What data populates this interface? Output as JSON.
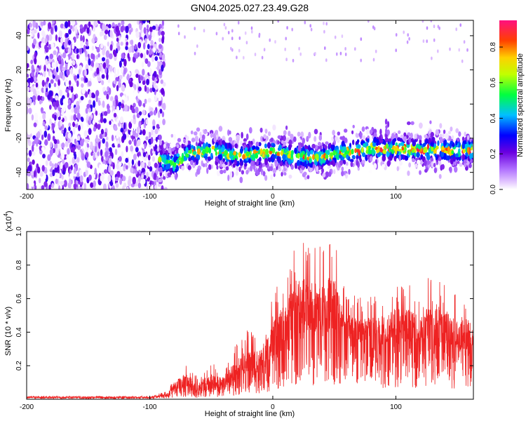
{
  "title": "GN04.2025.027.23.49.G28",
  "colors": {
    "snr_line": "#ee2222",
    "frame": "#000000"
  },
  "chart_data": [
    {
      "type": "heatmap",
      "name": "spectrogram",
      "xlabel": "Height of straight line (km)",
      "ylabel": "Frequency (Hz)",
      "xlim": [
        -200,
        163
      ],
      "ylim": [
        -50,
        49
      ],
      "x_ticks": [
        "-200",
        "-100",
        "0",
        "100"
      ],
      "y_ticks": [
        "-40",
        "-20",
        "0",
        "20",
        "40"
      ],
      "colorbar": {
        "label": "Normalized spectral amplitude",
        "range": [
          0,
          0.95
        ],
        "ticks": [
          "0.0",
          "0.2",
          "0.4",
          "0.6",
          "0.8"
        ],
        "colormap": "white-purple-blue-cyan-green-yellow-orange-red-magenta"
      },
      "signal_band": [
        {
          "x": -90,
          "f": -33
        },
        {
          "x": -80,
          "f": -35
        },
        {
          "x": -70,
          "f": -29
        },
        {
          "x": -50,
          "f": -27
        },
        {
          "x": -30,
          "f": -30
        },
        {
          "x": -10,
          "f": -29
        },
        {
          "x": 0,
          "f": -28
        },
        {
          "x": 20,
          "f": -31
        },
        {
          "x": 40,
          "f": -31
        },
        {
          "x": 60,
          "f": -28
        },
        {
          "x": 80,
          "f": -26
        },
        {
          "x": 100,
          "f": -26
        },
        {
          "x": 120,
          "f": -27
        },
        {
          "x": 140,
          "f": -27
        },
        {
          "x": 163,
          "f": -27
        }
      ],
      "noise_region": {
        "x_range": [
          -200,
          -88
        ],
        "f_range": [
          -50,
          49
        ]
      }
    },
    {
      "type": "line",
      "name": "snr",
      "xlabel": "Height of straight line (km)",
      "ylabel": "SNR (10 * v/v)",
      "y_multiplier": "(x10",
      "y_multiplier_exp": "4",
      "y_multiplier_close": ")",
      "xlim": [
        -200,
        163
      ],
      "ylim": [
        0,
        1.0
      ],
      "x_ticks": [
        "-200",
        "-100",
        "0",
        "100"
      ],
      "y_ticks": [
        "0.2",
        "0.4",
        "0.6",
        "0.8",
        "1.0"
      ],
      "envelope": {
        "x": [
          -200,
          -150,
          -100,
          -85,
          -80,
          -70,
          -60,
          -50,
          -40,
          -30,
          -20,
          -10,
          0,
          10,
          20,
          30,
          40,
          50,
          60,
          70,
          80,
          90,
          100,
          110,
          120,
          130,
          140,
          150,
          163
        ],
        "mean": [
          0.01,
          0.01,
          0.01,
          0.02,
          0.06,
          0.06,
          0.04,
          0.06,
          0.07,
          0.12,
          0.17,
          0.16,
          0.25,
          0.33,
          0.38,
          0.42,
          0.4,
          0.42,
          0.35,
          0.33,
          0.36,
          0.32,
          0.36,
          0.35,
          0.33,
          0.35,
          0.32,
          0.3,
          0.3
        ],
        "peak": [
          0.02,
          0.02,
          0.02,
          0.05,
          0.14,
          0.24,
          0.12,
          0.22,
          0.17,
          0.33,
          0.42,
          0.4,
          0.62,
          0.78,
          0.98,
          0.98,
          0.9,
          0.98,
          0.62,
          0.63,
          0.62,
          0.6,
          0.72,
          0.7,
          0.6,
          0.82,
          0.68,
          0.62,
          0.64
        ]
      }
    }
  ]
}
